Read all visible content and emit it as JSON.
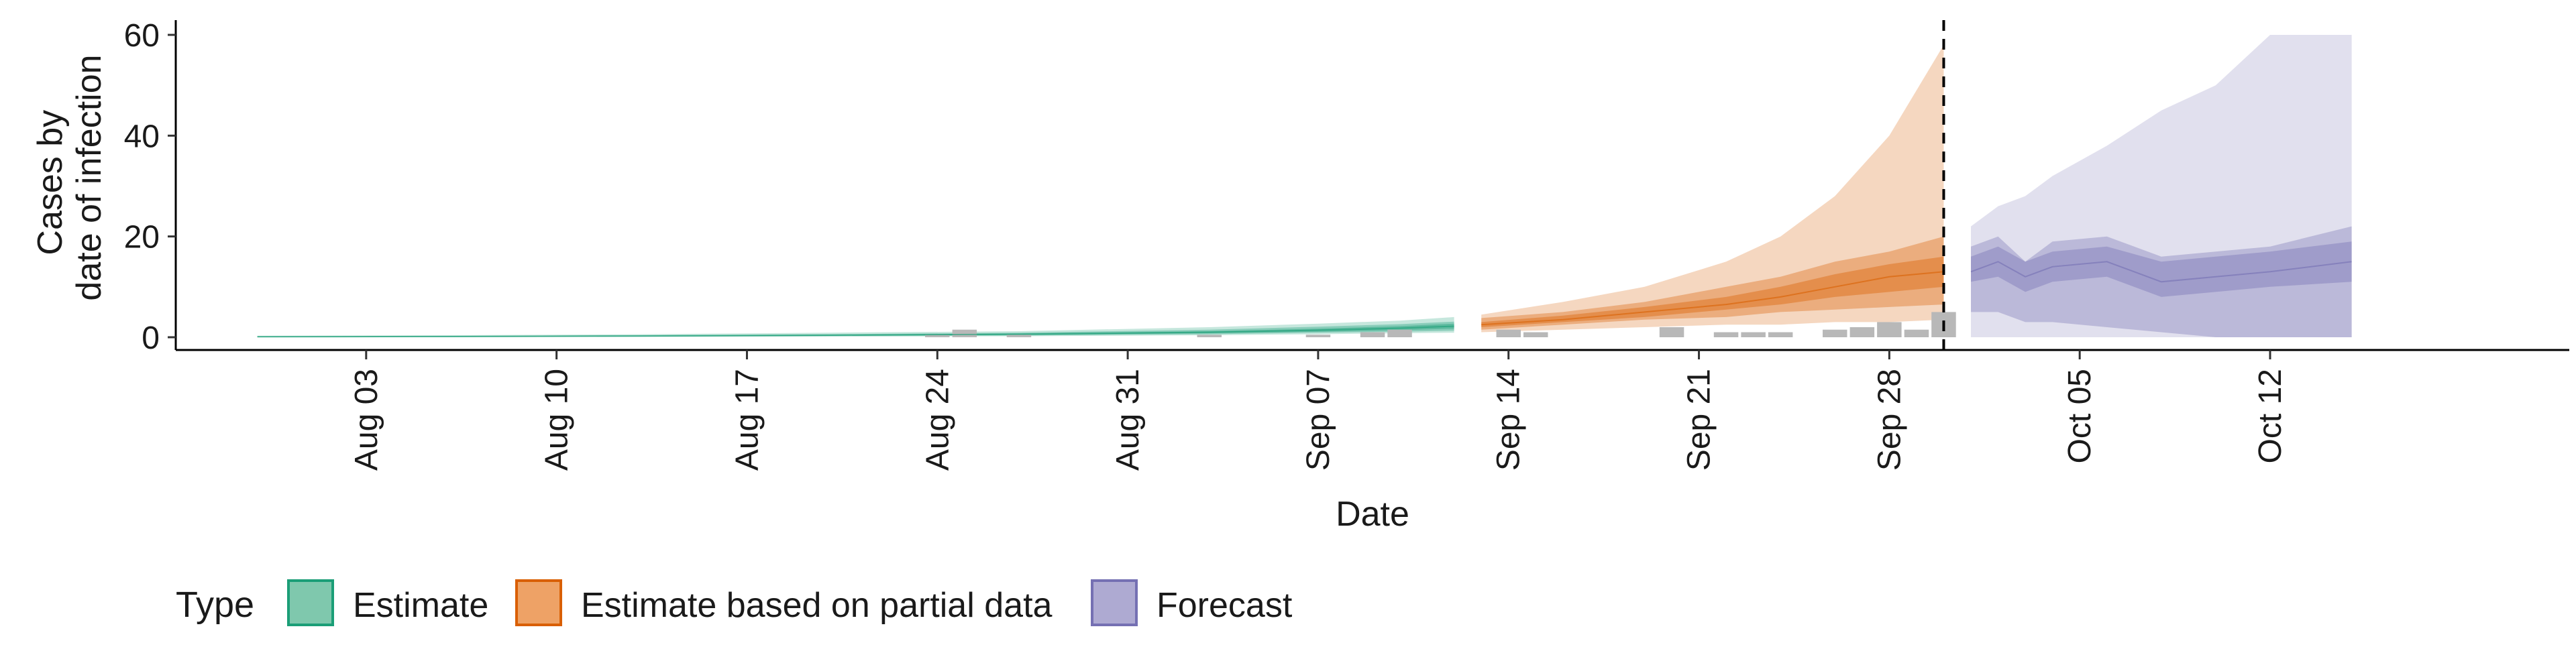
{
  "chart_data": {
    "type": "area",
    "xlabel": "Date",
    "ylabel_lines": [
      "Cases by",
      "date of infection"
    ],
    "ylim": [
      0,
      60
    ],
    "y_ticks": [
      0,
      20,
      40,
      60
    ],
    "x_domain": [
      "2023-07-27",
      "2023-10-23"
    ],
    "x_ticks": [
      {
        "date": "2023-08-03",
        "label": "Aug 03"
      },
      {
        "date": "2023-08-10",
        "label": "Aug 10"
      },
      {
        "date": "2023-08-17",
        "label": "Aug 17"
      },
      {
        "date": "2023-08-24",
        "label": "Aug 24"
      },
      {
        "date": "2023-08-31",
        "label": "Aug 31"
      },
      {
        "date": "2023-09-07",
        "label": "Sep 07"
      },
      {
        "date": "2023-09-14",
        "label": "Sep 14"
      },
      {
        "date": "2023-09-21",
        "label": "Sep 21"
      },
      {
        "date": "2023-09-28",
        "label": "Sep 28"
      },
      {
        "date": "2023-10-05",
        "label": "Oct 05"
      },
      {
        "date": "2023-10-12",
        "label": "Oct 12"
      }
    ],
    "grid": false,
    "legend": {
      "title": "Type",
      "position": "bottom-left",
      "items": [
        {
          "label": "Estimate",
          "fill": "#7fc8ad",
          "stroke": "#1b9e77"
        },
        {
          "label": "Estimate based on partial data",
          "fill": "#eea266",
          "stroke": "#d95f02"
        },
        {
          "label": "Forecast",
          "fill": "#aeaad2",
          "stroke": "#7570b3"
        }
      ]
    },
    "cutoff_line": {
      "date": "2023-09-30",
      "style": "dashed"
    },
    "series": [
      {
        "name": "Estimate",
        "color": "#1b9e77",
        "x": [
          "2023-07-30",
          "2023-08-06",
          "2023-08-13",
          "2023-08-20",
          "2023-08-27",
          "2023-09-03",
          "2023-09-07",
          "2023-09-10",
          "2023-09-12"
        ],
        "median": [
          0.1,
          0.15,
          0.25,
          0.4,
          0.6,
          1.0,
          1.4,
          1.8,
          2.2
        ],
        "lower_20": [
          0.05,
          0.1,
          0.2,
          0.3,
          0.45,
          0.8,
          1.1,
          1.4,
          1.7
        ],
        "upper_20": [
          0.15,
          0.2,
          0.3,
          0.5,
          0.75,
          1.2,
          1.7,
          2.2,
          2.7
        ],
        "lower_50": [
          0.0,
          0.05,
          0.15,
          0.25,
          0.35,
          0.6,
          0.9,
          1.1,
          1.3
        ],
        "upper_50": [
          0.2,
          0.25,
          0.4,
          0.6,
          0.9,
          1.5,
          2.1,
          2.6,
          3.1
        ],
        "lower_90": [
          0.0,
          0.0,
          0.05,
          0.1,
          0.2,
          0.4,
          0.6,
          0.8,
          0.9
        ],
        "upper_90": [
          0.3,
          0.4,
          0.6,
          0.9,
          1.2,
          2.0,
          2.7,
          3.3,
          4.0
        ]
      },
      {
        "name": "Estimate based on partial data",
        "color": "#d95f02",
        "x": [
          "2023-09-13",
          "2023-09-16",
          "2023-09-19",
          "2023-09-22",
          "2023-09-24",
          "2023-09-26",
          "2023-09-28",
          "2023-09-30"
        ],
        "median": [
          2.5,
          3.5,
          5.0,
          6.5,
          8.0,
          10.0,
          12.0,
          13.0
        ],
        "lower_20": [
          2.0,
          3.0,
          4.0,
          5.5,
          6.5,
          8.0,
          9.0,
          10.0
        ],
        "upper_20": [
          3.0,
          4.3,
          6.0,
          8.0,
          10.0,
          12.5,
          14.5,
          16.0
        ],
        "lower_50": [
          1.5,
          2.5,
          3.5,
          4.0,
          5.0,
          5.5,
          6.0,
          6.5
        ],
        "upper_50": [
          3.8,
          5.0,
          7.0,
          10.0,
          12.0,
          15.0,
          17.0,
          20.0
        ],
        "lower_90": [
          1.0,
          1.5,
          2.0,
          2.5,
          2.5,
          3.0,
          3.0,
          3.5
        ],
        "upper_90": [
          4.5,
          7.0,
          10.0,
          15.0,
          20.0,
          28.0,
          40.0,
          58.0
        ]
      },
      {
        "name": "Forecast",
        "color": "#7570b3",
        "x": [
          "2023-10-01",
          "2023-10-02",
          "2023-10-03",
          "2023-10-04",
          "2023-10-06",
          "2023-10-08",
          "2023-10-10",
          "2023-10-12",
          "2023-10-15"
        ],
        "median": [
          13,
          15,
          12,
          14,
          15,
          11,
          12,
          13,
          15
        ],
        "lower_20": [
          11,
          12,
          9,
          11,
          12,
          8,
          9,
          10,
          11
        ],
        "upper_20": [
          16,
          18,
          15,
          17,
          18,
          15,
          16,
          17,
          19
        ],
        "lower_50": [
          5,
          5,
          3,
          3,
          2,
          1,
          0,
          0,
          0
        ],
        "upper_50": [
          18,
          20,
          15,
          19,
          20,
          16,
          17,
          18,
          22
        ],
        "lower_90": [
          0,
          0,
          0,
          0,
          0,
          0,
          0,
          0,
          0
        ],
        "upper_90": [
          22,
          26,
          28,
          32,
          38,
          45,
          50,
          60,
          60
        ]
      }
    ],
    "reported_cases": {
      "color": "#b8b8b8",
      "x": [
        "2023-08-24",
        "2023-08-25",
        "2023-08-27",
        "2023-09-03",
        "2023-09-07",
        "2023-09-09",
        "2023-09-10",
        "2023-09-14",
        "2023-09-15",
        "2023-09-20",
        "2023-09-22",
        "2023-09-23",
        "2023-09-24",
        "2023-09-26",
        "2023-09-27",
        "2023-09-28",
        "2023-09-29",
        "2023-09-30"
      ],
      "y": [
        0.5,
        1.5,
        0.5,
        0.5,
        0.5,
        1,
        1.5,
        1.5,
        1,
        2,
        1,
        1,
        1,
        1.5,
        2,
        3,
        1.5,
        5
      ]
    }
  }
}
